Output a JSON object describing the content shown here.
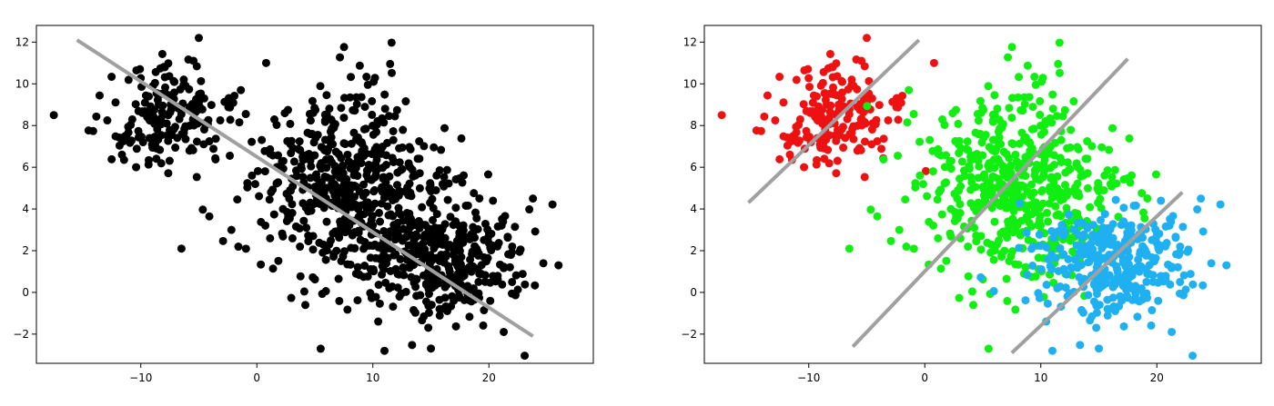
{
  "chart_data": [
    {
      "type": "scatter",
      "xlim": [
        -19,
        29
      ],
      "ylim": [
        -3.4,
        12.8
      ],
      "xticks": [
        -10,
        0,
        10,
        20
      ],
      "yticks": [
        -2,
        0,
        2,
        4,
        6,
        8,
        10,
        12
      ],
      "xtick_labels": [
        "−10",
        "0",
        "10",
        "20"
      ],
      "ytick_labels": [
        "−2",
        "0",
        "2",
        "4",
        "6",
        "8",
        "10",
        "12"
      ],
      "grid": false,
      "series": [
        {
          "color": "#000000",
          "cluster_centers": [
            [
              -8,
              8.3
            ],
            [
              8,
              5
            ],
            [
              16,
              1.5
            ]
          ],
          "cluster_spreads": [
            [
              2.8,
              1.3
            ],
            [
              4.2,
              2.3
            ],
            [
              3.5,
              1.5
            ]
          ],
          "cluster_counts": [
            180,
            560,
            330
          ],
          "extra_points": [
            [
              -17.5,
              8.5
            ],
            [
              26,
              1.3
            ],
            [
              -5,
              12.2
            ],
            [
              0.8,
              11
            ],
            [
              -6.5,
              2.1
            ],
            [
              11,
              -2.8
            ],
            [
              5.5,
              -2.7
            ],
            [
              22,
              0.5
            ]
          ]
        }
      ],
      "lines": [
        {
          "x": [
            -15.5,
            23.8
          ],
          "y": [
            12.1,
            -2.1
          ],
          "color": "#a0a0a0"
        }
      ]
    },
    {
      "type": "scatter",
      "xlim": [
        -19,
        29
      ],
      "ylim": [
        -3.4,
        12.8
      ],
      "xticks": [
        -10,
        0,
        10,
        20
      ],
      "yticks": [
        -2,
        0,
        2,
        4,
        6,
        8,
        10,
        12
      ],
      "xtick_labels": [
        "−10",
        "0",
        "10",
        "20"
      ],
      "ytick_labels": [
        "−2",
        "0",
        "2",
        "4",
        "6",
        "8",
        "10",
        "12"
      ],
      "grid": false,
      "series": [
        {
          "color": "#ee1111",
          "cluster_centers": [
            [
              -8,
              8.3
            ]
          ],
          "cluster_spreads": [
            [
              2.8,
              1.3
            ]
          ],
          "cluster_counts": [
            180
          ],
          "extra_points": [
            [
              -17.5,
              8.5
            ],
            [
              -5,
              12.2
            ],
            [
              0.8,
              11
            ]
          ]
        },
        {
          "color": "#11ee11",
          "cluster_centers": [
            [
              8,
              5
            ]
          ],
          "cluster_spreads": [
            [
              4.2,
              2.3
            ]
          ],
          "cluster_counts": [
            560
          ],
          "extra_points": [
            [
              -6.5,
              2.1
            ],
            [
              5.5,
              -2.7
            ]
          ]
        },
        {
          "color": "#1eb0f0",
          "cluster_centers": [
            [
              16,
              1.5
            ]
          ],
          "cluster_spreads": [
            [
              3.5,
              1.5
            ]
          ],
          "cluster_counts": [
            330
          ],
          "extra_points": [
            [
              26,
              1.3
            ],
            [
              11,
              -2.8
            ],
            [
              22,
              0.5
            ]
          ]
        }
      ],
      "lines": [
        {
          "x": [
            -15.2,
            -0.5
          ],
          "y": [
            4.3,
            12.1
          ],
          "color": "#a0a0a0"
        },
        {
          "x": [
            -6.2,
            17.5
          ],
          "y": [
            -2.6,
            11.2
          ],
          "color": "#a0a0a0"
        },
        {
          "x": [
            7.5,
            22.2
          ],
          "y": [
            -2.9,
            4.8
          ],
          "color": "#a0a0a0"
        }
      ]
    }
  ]
}
